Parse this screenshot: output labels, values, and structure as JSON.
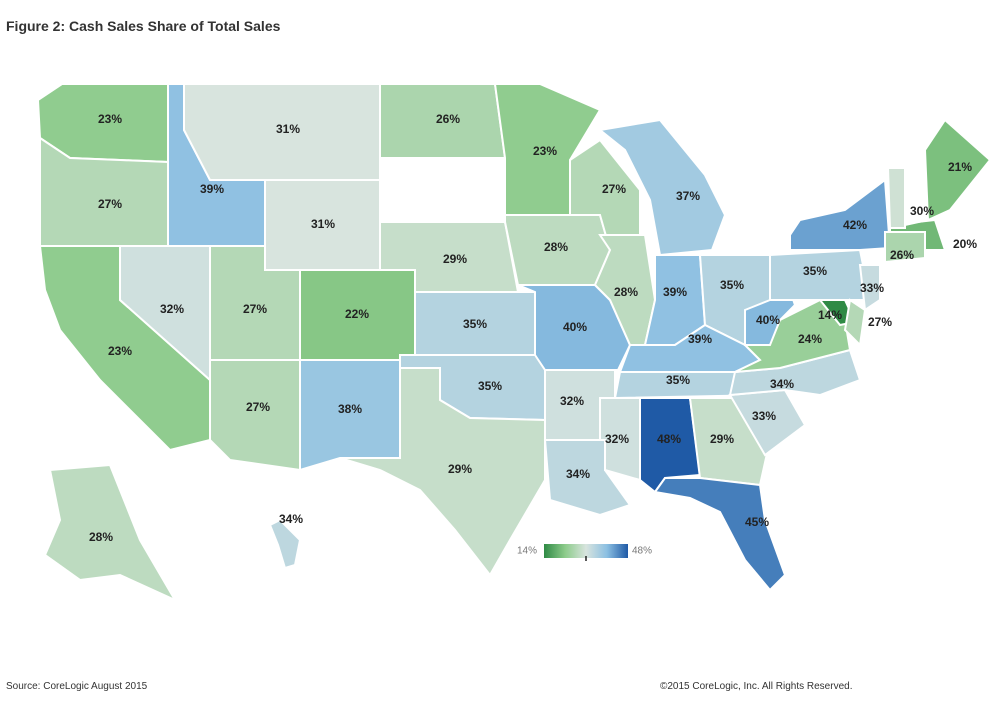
{
  "title": "Figure 2: Cash Sales Share of Total Sales",
  "source": "Source: CoreLogic August 2015",
  "copyright": "©2015 CoreLogic, Inc. All Rights Reserved.",
  "legend": {
    "min_label": "14%",
    "max_label": "48%",
    "min": 14,
    "max": 48,
    "colors": [
      "#2f8a45",
      "#8ccb8a",
      "#d8e4de",
      "#8bbfe2",
      "#1f5aa6"
    ]
  },
  "states": [
    {
      "id": "WA",
      "value": 23,
      "label": "23%"
    },
    {
      "id": "OR",
      "value": 27,
      "label": "27%"
    },
    {
      "id": "CA",
      "value": 23,
      "label": "23%"
    },
    {
      "id": "ID",
      "value": 39,
      "label": "39%"
    },
    {
      "id": "NV",
      "value": 32,
      "label": "32%"
    },
    {
      "id": "MT",
      "value": 31,
      "label": "31%"
    },
    {
      "id": "WY",
      "value": 31,
      "label": "31%"
    },
    {
      "id": "UT",
      "value": 27,
      "label": "27%"
    },
    {
      "id": "AZ",
      "value": 27,
      "label": "27%"
    },
    {
      "id": "CO",
      "value": 22,
      "label": "22%"
    },
    {
      "id": "NM",
      "value": 38,
      "label": "38%"
    },
    {
      "id": "ND",
      "value": 26,
      "label": "26%"
    },
    {
      "id": "SD",
      "value": null,
      "label": ""
    },
    {
      "id": "NE",
      "value": 29,
      "label": "29%"
    },
    {
      "id": "KS",
      "value": 35,
      "label": "35%"
    },
    {
      "id": "OK",
      "value": 35,
      "label": "35%"
    },
    {
      "id": "TX",
      "value": 29,
      "label": "29%"
    },
    {
      "id": "MN",
      "value": 23,
      "label": "23%"
    },
    {
      "id": "IA",
      "value": 28,
      "label": "28%"
    },
    {
      "id": "MO",
      "value": 40,
      "label": "40%"
    },
    {
      "id": "AR",
      "value": 32,
      "label": "32%"
    },
    {
      "id": "LA",
      "value": 34,
      "label": "34%"
    },
    {
      "id": "WI",
      "value": 27,
      "label": "27%"
    },
    {
      "id": "IL",
      "value": 28,
      "label": "28%"
    },
    {
      "id": "MI",
      "value": 37,
      "label": "37%"
    },
    {
      "id": "IN",
      "value": 39,
      "label": "39%"
    },
    {
      "id": "OH",
      "value": 35,
      "label": "35%"
    },
    {
      "id": "KY",
      "value": 39,
      "label": "39%"
    },
    {
      "id": "TN",
      "value": 35,
      "label": "35%"
    },
    {
      "id": "MS",
      "value": 32,
      "label": "32%"
    },
    {
      "id": "AL",
      "value": 48,
      "label": "48%"
    },
    {
      "id": "GA",
      "value": 29,
      "label": "29%"
    },
    {
      "id": "FL",
      "value": 45,
      "label": "45%"
    },
    {
      "id": "SC",
      "value": 33,
      "label": "33%"
    },
    {
      "id": "NC",
      "value": 34,
      "label": "34%"
    },
    {
      "id": "VA",
      "value": 24,
      "label": "24%"
    },
    {
      "id": "WV",
      "value": 40,
      "label": "40%"
    },
    {
      "id": "PA",
      "value": 35,
      "label": "35%"
    },
    {
      "id": "NY",
      "value": 42,
      "label": "42%"
    },
    {
      "id": "NJ",
      "value": 33,
      "label": "33%"
    },
    {
      "id": "MD",
      "value": 14,
      "label": "14%"
    },
    {
      "id": "DE",
      "value": 27,
      "label": "27%"
    },
    {
      "id": "CT",
      "value": 26,
      "label": "26%"
    },
    {
      "id": "MA",
      "value": 20,
      "label": "20%"
    },
    {
      "id": "VT",
      "value": 30,
      "label": "30%"
    },
    {
      "id": "NH",
      "value": null,
      "label": ""
    },
    {
      "id": "ME",
      "value": 21,
      "label": "21%"
    },
    {
      "id": "AK",
      "value": 28,
      "label": "28%"
    },
    {
      "id": "HI",
      "value": 34,
      "label": "34%"
    }
  ]
}
